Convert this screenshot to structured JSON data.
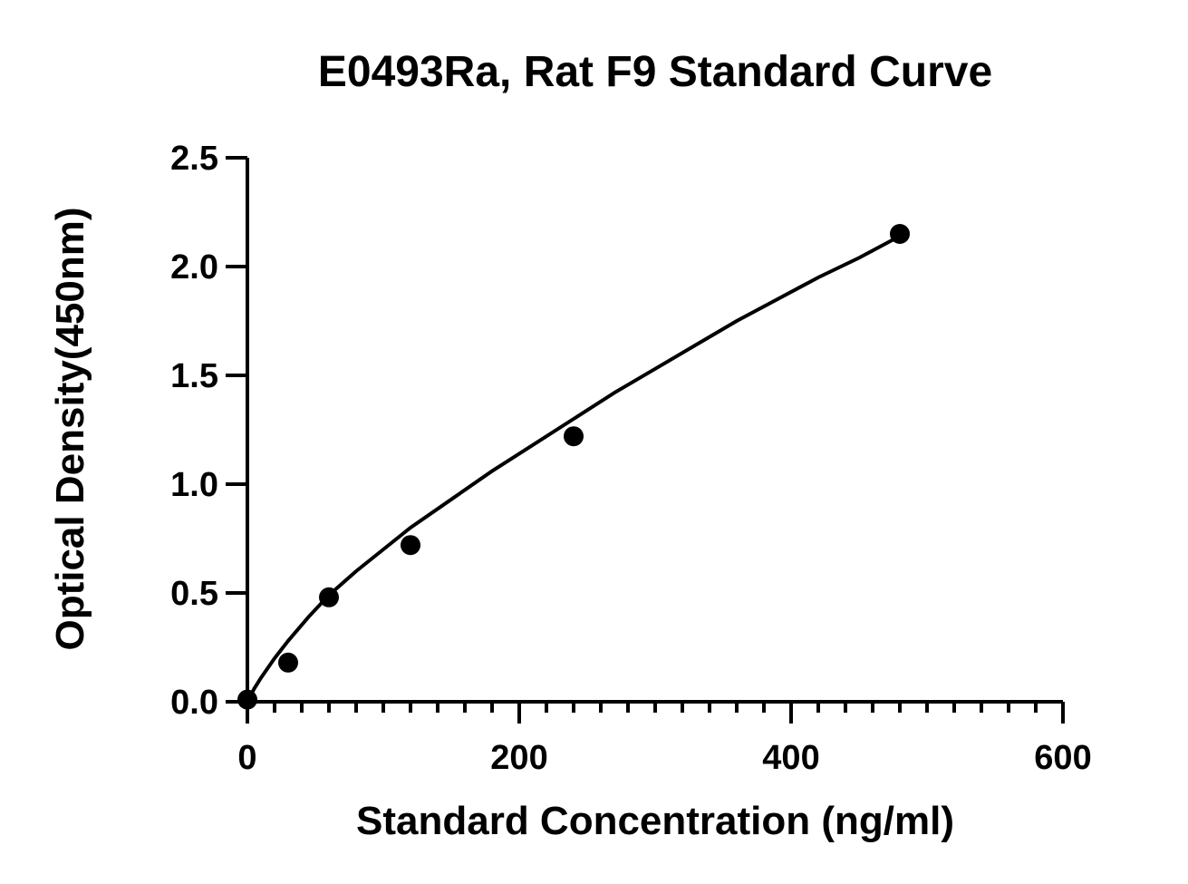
{
  "chart_data": {
    "type": "scatter",
    "title": "E0493Ra, Rat F9 Standard Curve",
    "xlabel": "Standard Concentration (ng/ml)",
    "ylabel": "Optical Density(450nm)",
    "xlim": [
      0,
      600
    ],
    "ylim": [
      0,
      2.5
    ],
    "x_ticks": [
      0,
      200,
      400,
      600
    ],
    "x_tick_labels": [
      "0",
      "200",
      "400",
      "600"
    ],
    "x_minor_step": 20,
    "y_ticks": [
      0,
      0.5,
      1.0,
      1.5,
      2.0,
      2.5
    ],
    "y_tick_labels": [
      "0.0",
      "0.5",
      "1.0",
      "1.5",
      "2.0",
      "2.5"
    ],
    "grid": false,
    "legend": "none",
    "series": [
      {
        "x": [
          0,
          30,
          60,
          120,
          240,
          480
        ],
        "y": [
          0.01,
          0.18,
          0.48,
          0.72,
          1.22,
          2.15
        ]
      }
    ],
    "fit_curve": {
      "x": [
        0,
        5,
        10,
        20,
        30,
        45,
        60,
        80,
        100,
        120,
        150,
        180,
        210,
        240,
        270,
        300,
        330,
        360,
        390,
        420,
        450,
        480
      ],
      "y": [
        0.0,
        0.06,
        0.11,
        0.2,
        0.28,
        0.39,
        0.49,
        0.6,
        0.7,
        0.8,
        0.93,
        1.06,
        1.18,
        1.3,
        1.42,
        1.53,
        1.64,
        1.75,
        1.85,
        1.95,
        2.04,
        2.14
      ]
    },
    "colors": {
      "marker": "#000000",
      "line": "#000000",
      "axis": "#000000"
    }
  }
}
